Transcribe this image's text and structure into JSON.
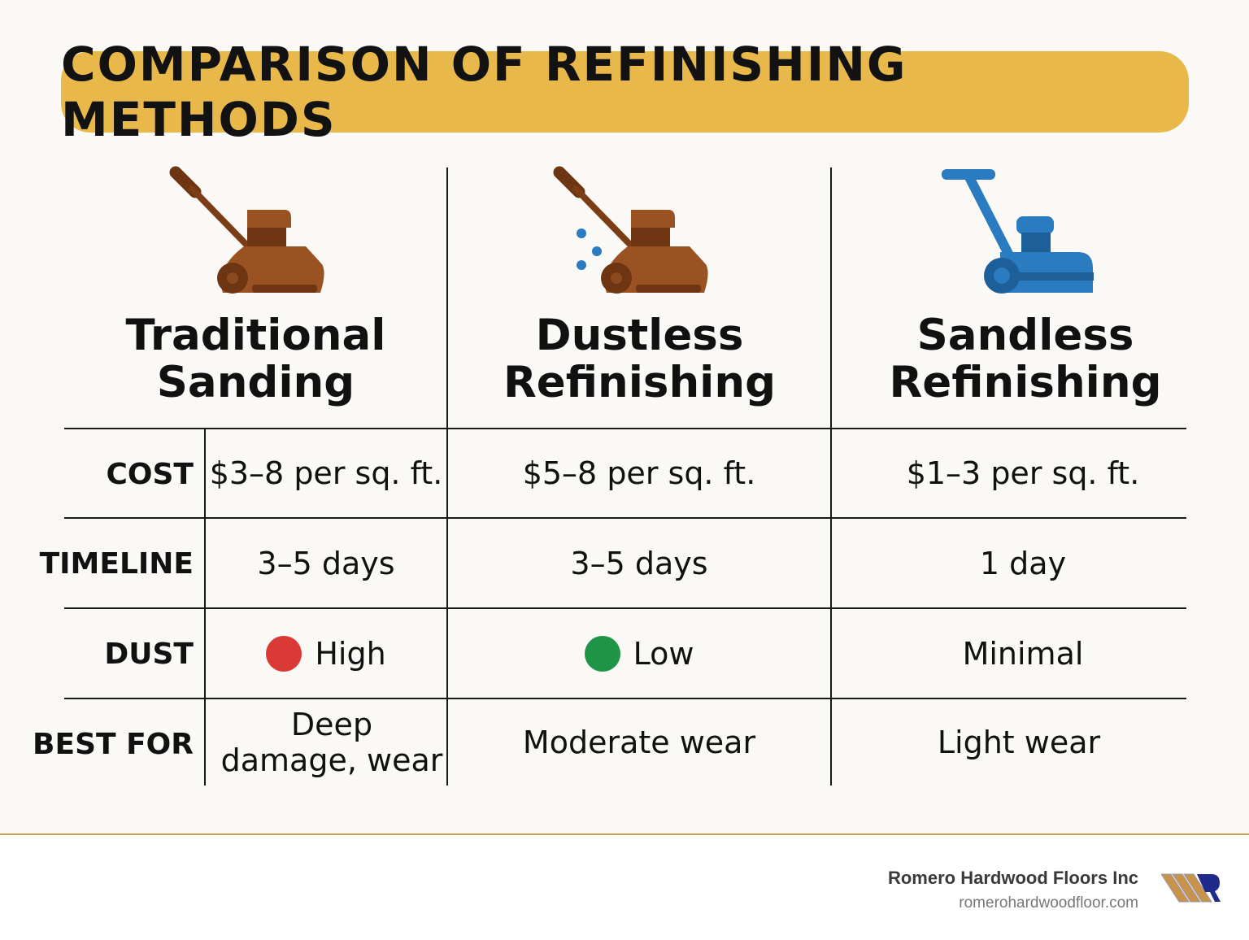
{
  "title": "COMPARISON OF REFINISHING METHODS",
  "colors": {
    "title_bar": "#e8b84a",
    "traditional_icon": "#8b4a1f",
    "dustless_icon": "#8b4a1f",
    "sandless_icon": "#2a7bbf",
    "dust_high": "#d93a35",
    "dust_low": "#1f9447"
  },
  "methods": [
    {
      "name_line1": "Traditional",
      "name_line2": "Sanding",
      "icon": "floor-sander-icon"
    },
    {
      "name_line1": "Dustless",
      "name_line2": "Refinishing",
      "icon": "floor-sander-with-dust-icon"
    },
    {
      "name_line1": "Sandless",
      "name_line2": "Refinishing",
      "icon": "floor-buffer-icon"
    }
  ],
  "rows": [
    {
      "label": "COST",
      "values": [
        "$3–8 per sq. ft.",
        "$5–8 per sq. ft.",
        "$1–3 per sq. ft."
      ]
    },
    {
      "label": "TIMELINE",
      "values": [
        "3–5 days",
        "3–5 days",
        "1 day"
      ]
    },
    {
      "label": "DUST",
      "values": [
        "High",
        "Low",
        "Minimal"
      ]
    },
    {
      "label": "BEST FOR",
      "values": [
        "Deep damage, wear",
        "Moderate wear",
        "Light wear"
      ]
    }
  ],
  "footer": {
    "company": "Romero Hardwood Floors Inc",
    "website": "romerohardwoodfloor.com",
    "logo_text": "R"
  }
}
